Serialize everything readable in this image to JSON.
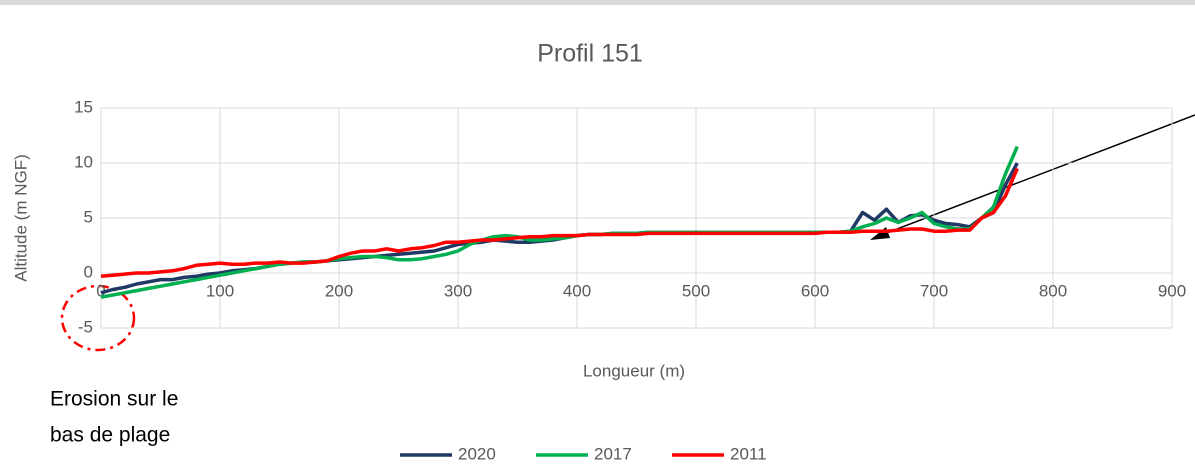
{
  "chart_data": {
    "type": "line",
    "title": "Profil 151",
    "xlabel": "Longueur (m)",
    "ylabel": "Altitude (m NGF)",
    "annotation_lines": [
      "Erosion sur le",
      "bas de plage"
    ],
    "x": [
      0,
      10,
      20,
      30,
      40,
      50,
      60,
      70,
      80,
      90,
      100,
      110,
      120,
      130,
      140,
      150,
      160,
      170,
      180,
      190,
      200,
      210,
      220,
      230,
      240,
      250,
      260,
      270,
      280,
      290,
      300,
      310,
      320,
      330,
      340,
      350,
      360,
      370,
      380,
      390,
      400,
      410,
      420,
      430,
      440,
      450,
      460,
      470,
      480,
      490,
      500,
      510,
      520,
      530,
      540,
      550,
      560,
      570,
      580,
      590,
      600,
      610,
      620,
      630,
      640,
      650,
      660,
      670,
      680,
      690,
      700,
      710,
      720,
      730,
      740,
      750,
      760,
      770
    ],
    "series": [
      {
        "name": "2020",
        "color": "#1f3864",
        "values": [
          -1.8,
          -1.5,
          -1.3,
          -1.0,
          -0.8,
          -0.6,
          -0.6,
          -0.4,
          -0.3,
          -0.1,
          0,
          0.2,
          0.3,
          0.4,
          0.6,
          0.8,
          0.9,
          1.0,
          1.0,
          1.1,
          1.2,
          1.3,
          1.4,
          1.5,
          1.6,
          1.7,
          1.8,
          1.9,
          2.0,
          2.3,
          2.6,
          2.7,
          2.8,
          3.0,
          2.9,
          2.8,
          2.8,
          2.9,
          3.0,
          3.2,
          3.4,
          3.5,
          3.5,
          3.6,
          3.6,
          3.6,
          3.7,
          3.7,
          3.7,
          3.7,
          3.7,
          3.7,
          3.7,
          3.7,
          3.7,
          3.7,
          3.7,
          3.7,
          3.7,
          3.7,
          3.7,
          3.7,
          3.7,
          3.8,
          5.5,
          4.8,
          5.8,
          4.6,
          5.2,
          5.3,
          4.8,
          4.5,
          4.4,
          4.2,
          5.0,
          5.5,
          8.0,
          10.0
        ]
      },
      {
        "name": "2017",
        "color": "#00b050",
        "values": [
          -2.2,
          -2.0,
          -1.8,
          -1.6,
          -1.4,
          -1.2,
          -1.0,
          -0.8,
          -0.6,
          -0.4,
          -0.2,
          0,
          0.2,
          0.4,
          0.6,
          0.8,
          0.9,
          1.0,
          1.0,
          1.1,
          1.3,
          1.4,
          1.5,
          1.5,
          1.4,
          1.2,
          1.2,
          1.3,
          1.5,
          1.7,
          2.0,
          2.6,
          3.0,
          3.3,
          3.4,
          3.3,
          3.0,
          3.0,
          3.1,
          3.2,
          3.4,
          3.5,
          3.5,
          3.6,
          3.6,
          3.6,
          3.7,
          3.7,
          3.7,
          3.7,
          3.7,
          3.7,
          3.7,
          3.7,
          3.7,
          3.7,
          3.7,
          3.7,
          3.7,
          3.7,
          3.7,
          3.7,
          3.7,
          3.8,
          4.2,
          4.5,
          5.0,
          4.6,
          5.0,
          5.5,
          4.5,
          4.2,
          4.0,
          4.0,
          5.0,
          6.0,
          9.0,
          11.5
        ]
      },
      {
        "name": "2011",
        "color": "#ff0000",
        "values": [
          -0.3,
          -0.2,
          -0.1,
          0,
          0,
          0.1,
          0.2,
          0.4,
          0.7,
          0.8,
          0.9,
          0.8,
          0.8,
          0.9,
          0.9,
          1.0,
          0.9,
          0.9,
          1.0,
          1.1,
          1.5,
          1.8,
          2.0,
          2.0,
          2.2,
          2.0,
          2.2,
          2.3,
          2.5,
          2.8,
          2.8,
          2.9,
          3.0,
          3.0,
          3.1,
          3.2,
          3.3,
          3.3,
          3.4,
          3.4,
          3.4,
          3.5,
          3.5,
          3.5,
          3.5,
          3.5,
          3.6,
          3.6,
          3.6,
          3.6,
          3.6,
          3.6,
          3.6,
          3.6,
          3.6,
          3.6,
          3.6,
          3.6,
          3.6,
          3.6,
          3.6,
          3.7,
          3.7,
          3.7,
          3.8,
          3.8,
          3.8,
          3.9,
          4.0,
          4.0,
          3.8,
          3.8,
          3.9,
          3.9,
          5.0,
          5.5,
          7.0,
          9.5
        ]
      }
    ],
    "xlim": [
      0,
      900
    ],
    "xticks": [
      0,
      100,
      200,
      300,
      400,
      500,
      600,
      700,
      800,
      900
    ],
    "ylim": [
      -5,
      15
    ],
    "yticks": [
      -5,
      0,
      5,
      10,
      15
    ],
    "grid": true,
    "legend": "bottom"
  }
}
